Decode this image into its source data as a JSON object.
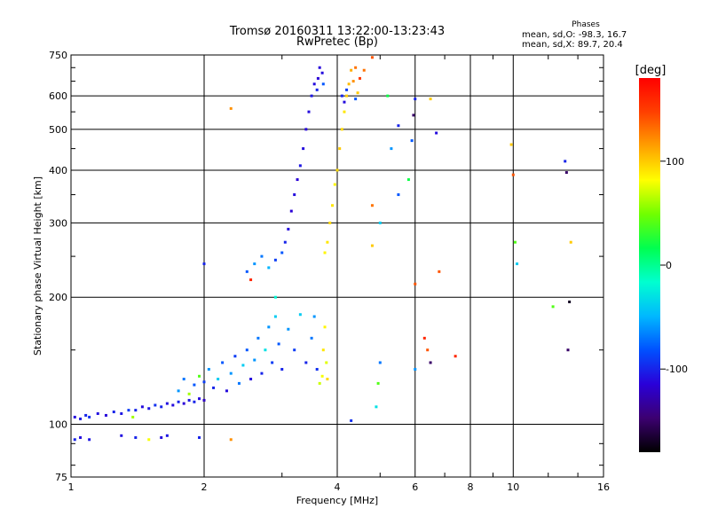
{
  "header": {
    "title": "Tromsø 20160311 13:22:00-13:23:43",
    "subtitle": "RwPretec (Bp)",
    "phase_heading": "Phases",
    "phase_o": "mean, sd,O: -98.3, 16.7",
    "phase_x": "mean, sd,X:  89.7, 20.4"
  },
  "chart_data": {
    "type": "scatter",
    "xlabel": "Frequency [MHz]",
    "ylabel": "Stationary phase Virtual Height [km]",
    "xscale": "log",
    "yscale": "log",
    "xlim": [
      1,
      16
    ],
    "ylim": [
      75,
      750
    ],
    "x_ticks": [
      1,
      2,
      4,
      6,
      8,
      10,
      16
    ],
    "x_tick_labels": [
      "1",
      "2",
      "4",
      "6",
      "8",
      "10",
      "16"
    ],
    "y_ticks": [
      75,
      100,
      200,
      300,
      400,
      500,
      600,
      750
    ],
    "y_tick_labels": [
      "75",
      "100",
      "200",
      "300",
      "400",
      "500",
      "600",
      "750"
    ],
    "grid": true,
    "colorbar": {
      "label": "[deg]",
      "range": [
        -180,
        180
      ],
      "ticks": [
        100,
        0,
        -100
      ],
      "tick_labels": [
        "100",
        "0",
        "-100"
      ],
      "colors": [
        "#000000",
        "#3c0070",
        "#2a00d8",
        "#0050ff",
        "#00b8ff",
        "#00ffd0",
        "#00ff50",
        "#70ff00",
        "#ffff00",
        "#ffa000",
        "#ff4000",
        "#ff0000"
      ]
    },
    "points": [
      [
        1.02,
        104,
        -110
      ],
      [
        1.05,
        103,
        -105
      ],
      [
        1.08,
        105,
        -100
      ],
      [
        1.1,
        104,
        -95
      ],
      [
        1.15,
        106,
        -108
      ],
      [
        1.2,
        105,
        -112
      ],
      [
        1.25,
        107,
        -100
      ],
      [
        1.3,
        106,
        -105
      ],
      [
        1.35,
        108,
        -90
      ],
      [
        1.38,
        104,
        60
      ],
      [
        1.4,
        108,
        -100
      ],
      [
        1.45,
        110,
        -110
      ],
      [
        1.5,
        109,
        -105
      ],
      [
        1.55,
        111,
        -95
      ],
      [
        1.6,
        110,
        -100
      ],
      [
        1.65,
        112,
        -108
      ],
      [
        1.7,
        111,
        -110
      ],
      [
        1.75,
        113,
        -100
      ],
      [
        1.8,
        112,
        -115
      ],
      [
        1.85,
        114,
        -105
      ],
      [
        1.9,
        113,
        -100
      ],
      [
        1.95,
        115,
        -110
      ],
      [
        2.0,
        114,
        -120
      ],
      [
        1.75,
        120,
        -60
      ],
      [
        1.8,
        128,
        -70
      ],
      [
        1.85,
        118,
        60
      ],
      [
        1.9,
        124,
        -80
      ],
      [
        1.95,
        130,
        40
      ],
      [
        2.0,
        126,
        -90
      ],
      [
        2.05,
        135,
        -60
      ],
      [
        2.1,
        122,
        -100
      ],
      [
        2.15,
        128,
        -40
      ],
      [
        2.2,
        140,
        -80
      ],
      [
        2.25,
        120,
        -110
      ],
      [
        2.3,
        132,
        -60
      ],
      [
        2.35,
        145,
        -90
      ],
      [
        2.4,
        125,
        -70
      ],
      [
        2.45,
        138,
        -40
      ],
      [
        2.5,
        150,
        -80
      ],
      [
        2.55,
        128,
        -110
      ],
      [
        2.6,
        142,
        -60
      ],
      [
        2.65,
        160,
        -70
      ],
      [
        2.7,
        132,
        -100
      ],
      [
        2.75,
        150,
        -30
      ],
      [
        2.8,
        170,
        -60
      ],
      [
        2.85,
        140,
        -90
      ],
      [
        2.9,
        180,
        -40
      ],
      [
        2.95,
        155,
        -80
      ],
      [
        3.0,
        135,
        -100
      ],
      [
        3.1,
        168,
        -60
      ],
      [
        3.2,
        150,
        -90
      ],
      [
        3.3,
        182,
        -40
      ],
      [
        3.4,
        140,
        -100
      ],
      [
        3.5,
        160,
        -70
      ],
      [
        3.55,
        180,
        -60
      ],
      [
        3.6,
        135,
        -95
      ],
      [
        3.65,
        125,
        70
      ],
      [
        3.7,
        130,
        80
      ],
      [
        3.72,
        150,
        90
      ],
      [
        3.75,
        170,
        85
      ],
      [
        3.78,
        140,
        75
      ],
      [
        3.8,
        128,
        95
      ],
      [
        2.5,
        230,
        -80
      ],
      [
        2.6,
        240,
        -60
      ],
      [
        2.7,
        250,
        -70
      ],
      [
        2.8,
        235,
        -50
      ],
      [
        2.9,
        245,
        -90
      ],
      [
        3.0,
        255,
        -80
      ],
      [
        3.05,
        270,
        -100
      ],
      [
        3.1,
        290,
        -110
      ],
      [
        3.15,
        320,
        -115
      ],
      [
        3.2,
        350,
        -110
      ],
      [
        3.25,
        380,
        -115
      ],
      [
        3.3,
        410,
        -105
      ],
      [
        3.35,
        450,
        -110
      ],
      [
        3.4,
        500,
        -112
      ],
      [
        3.45,
        550,
        -110
      ],
      [
        3.5,
        600,
        -105
      ],
      [
        3.55,
        640,
        -110
      ],
      [
        3.6,
        620,
        -100
      ],
      [
        3.62,
        660,
        -115
      ],
      [
        3.65,
        700,
        -112
      ],
      [
        3.7,
        680,
        -110
      ],
      [
        3.72,
        640,
        -80
      ],
      [
        3.75,
        255,
        85
      ],
      [
        3.8,
        270,
        90
      ],
      [
        3.85,
        300,
        95
      ],
      [
        3.9,
        330,
        90
      ],
      [
        3.95,
        370,
        85
      ],
      [
        4.0,
        400,
        95
      ],
      [
        4.05,
        450,
        100
      ],
      [
        4.1,
        500,
        95
      ],
      [
        4.15,
        550,
        90
      ],
      [
        4.2,
        600,
        100
      ],
      [
        4.25,
        640,
        105
      ],
      [
        4.3,
        690,
        110
      ],
      [
        4.35,
        650,
        120
      ],
      [
        4.4,
        700,
        130
      ],
      [
        4.45,
        610,
        100
      ],
      [
        4.5,
        660,
        150
      ],
      [
        4.1,
        600,
        -100
      ],
      [
        4.15,
        580,
        -110
      ],
      [
        4.2,
        620,
        -90
      ],
      [
        4.4,
        590,
        -80
      ],
      [
        4.6,
        690,
        130
      ],
      [
        1.02,
        92,
        -100
      ],
      [
        1.05,
        93,
        -110
      ],
      [
        1.1,
        92,
        -105
      ],
      [
        1.3,
        94,
        -108
      ],
      [
        1.4,
        93,
        -100
      ],
      [
        1.5,
        92,
        80
      ],
      [
        1.6,
        93,
        -110
      ],
      [
        1.65,
        94,
        -105
      ],
      [
        1.95,
        93,
        -100
      ],
      [
        2.3,
        92,
        120
      ],
      [
        2.3,
        560,
        120
      ],
      [
        2.0,
        240,
        -100
      ],
      [
        2.55,
        220,
        160
      ],
      [
        2.9,
        200,
        -20
      ],
      [
        4.3,
        102,
        -95
      ],
      [
        4.8,
        330,
        130
      ],
      [
        4.8,
        265,
        100
      ],
      [
        4.9,
        110,
        -30
      ],
      [
        4.95,
        125,
        40
      ],
      [
        5.0,
        140,
        -70
      ],
      [
        5.0,
        300,
        -40
      ],
      [
        5.2,
        600,
        20
      ],
      [
        5.3,
        450,
        -60
      ],
      [
        5.5,
        350,
        -80
      ],
      [
        5.5,
        510,
        -100
      ],
      [
        5.8,
        380,
        20
      ],
      [
        5.9,
        470,
        -80
      ],
      [
        5.95,
        540,
        -150
      ],
      [
        6.0,
        135,
        -60
      ],
      [
        6.0,
        215,
        140
      ],
      [
        6.3,
        160,
        160
      ],
      [
        6.4,
        150,
        140
      ],
      [
        6.5,
        140,
        -150
      ],
      [
        6.5,
        590,
        100
      ],
      [
        6.7,
        490,
        -110
      ],
      [
        6.8,
        230,
        140
      ],
      [
        7.4,
        145,
        160
      ],
      [
        9.9,
        460,
        100
      ],
      [
        10.0,
        390,
        140
      ],
      [
        10.1,
        270,
        40
      ],
      [
        10.2,
        240,
        -40
      ],
      [
        12.3,
        190,
        40
      ],
      [
        13.1,
        420,
        -100
      ],
      [
        13.2,
        395,
        -150
      ],
      [
        13.3,
        150,
        -150
      ],
      [
        13.4,
        195,
        -170
      ],
      [
        13.5,
        270,
        100
      ],
      [
        4.8,
        740,
        140
      ],
      [
        6.0,
        590,
        -100
      ]
    ]
  }
}
